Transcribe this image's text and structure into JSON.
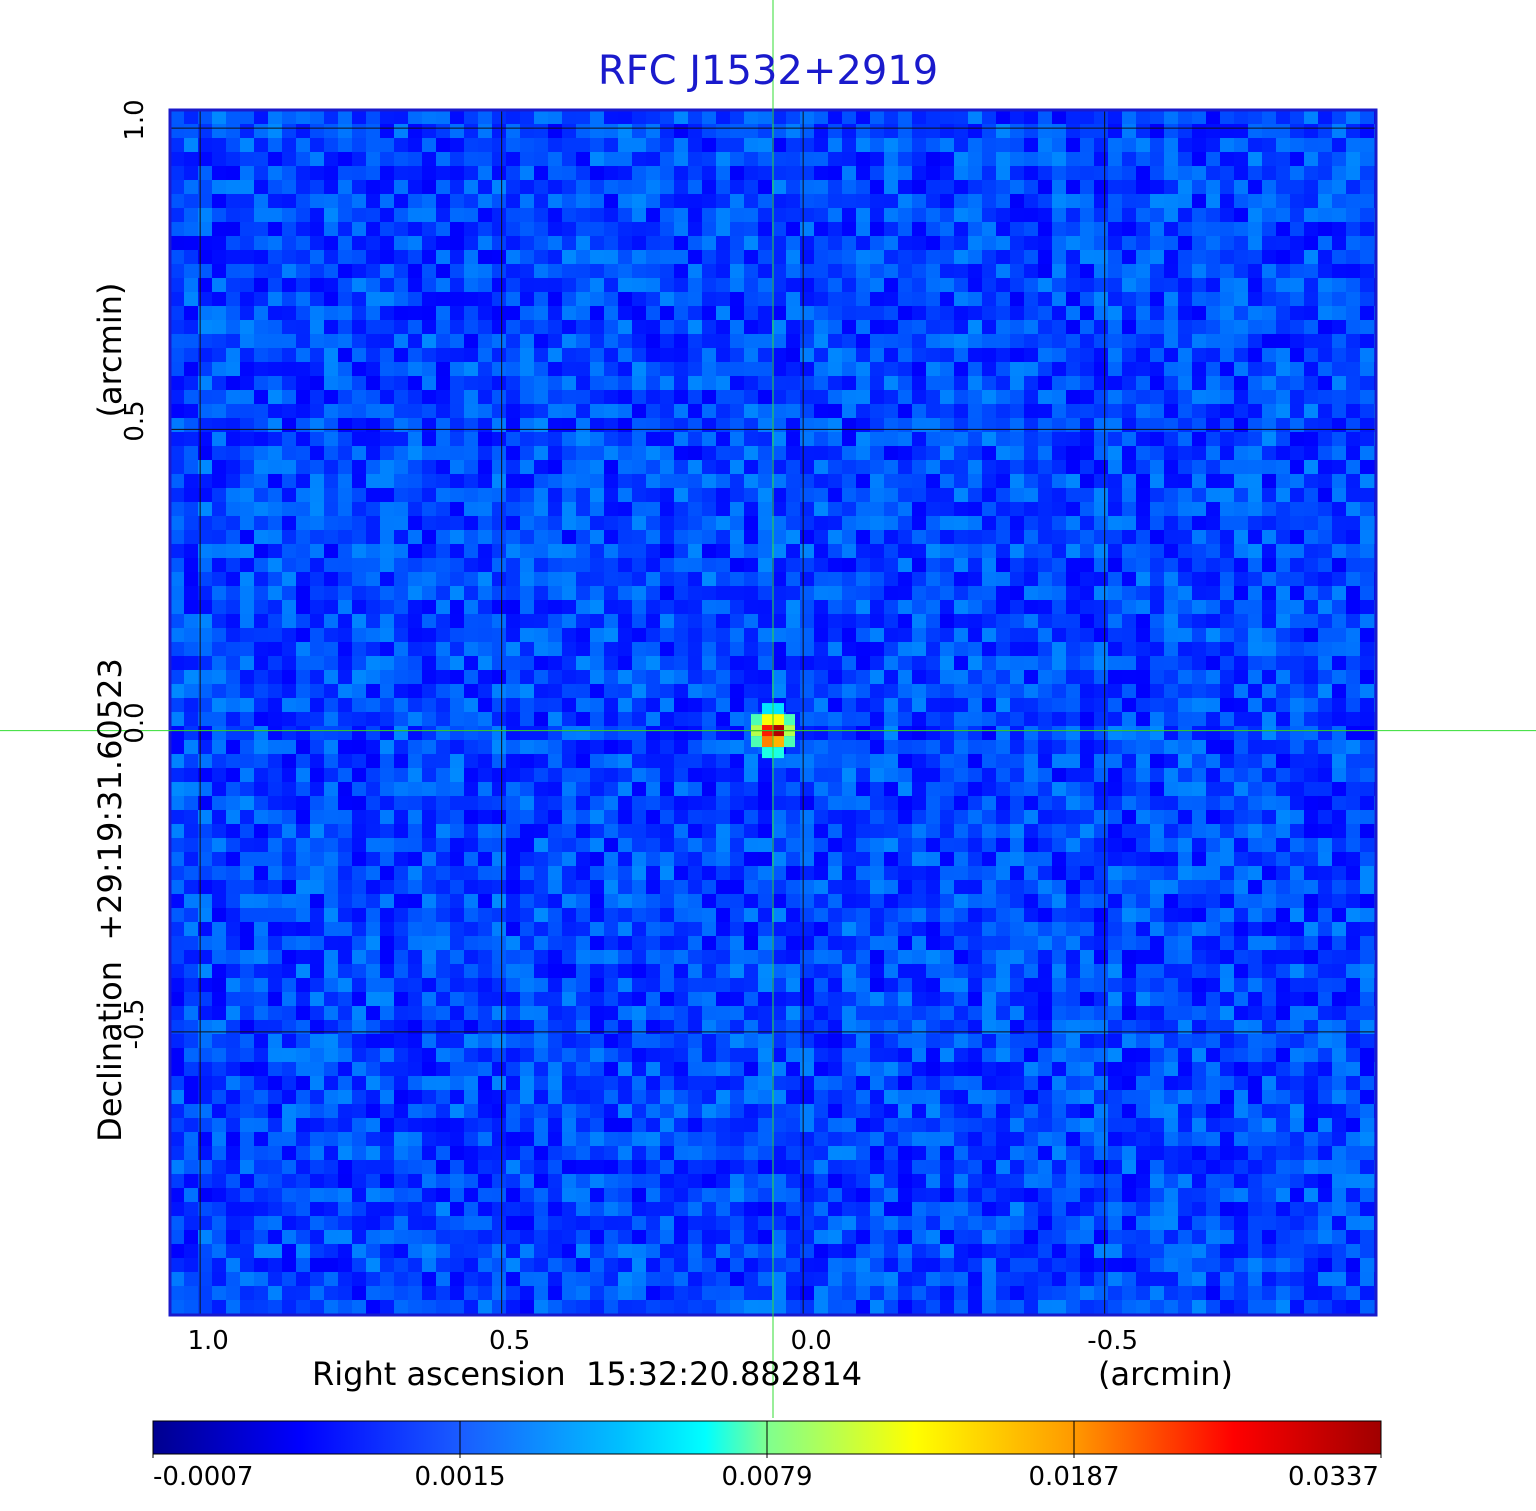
{
  "chart_data": {
    "type": "heatmap",
    "title": "RFC J1532+2919",
    "xlabel": "Right ascension  15:32:20.882814",
    "xlabel_unit": "(arcmin)",
    "ylabel": "Declination  +29:19:31.60523",
    "ylabel_unit": "(arcmin)",
    "x_ticks": [
      "1.0",
      "0.5",
      "0.0",
      "-0.5"
    ],
    "x_tick_values": [
      1.0,
      0.5,
      0.0,
      -0.5
    ],
    "y_ticks": [
      "1.0",
      "0.5",
      "0.0",
      "-0.5"
    ],
    "y_tick_values": [
      1.0,
      0.5,
      0.0,
      -0.5
    ],
    "xlim": [
      1.05,
      -0.95
    ],
    "ylim": [
      -0.97,
      1.03
    ],
    "grid": true,
    "colormap": "jet",
    "colorbar_ticks": [
      "-0.0007",
      "0.0015",
      "0.0079",
      "0.0187",
      "0.0337"
    ],
    "colorbar_values": [
      -0.0007,
      0.0015,
      0.0079,
      0.0187,
      0.0337
    ],
    "source_peak": {
      "x": 0.05,
      "y": 0.0,
      "value": 0.0337
    },
    "background_level": 0.0005,
    "crosshair": {
      "x": 0.05,
      "y": 0.0,
      "color": "#33dd33"
    }
  }
}
